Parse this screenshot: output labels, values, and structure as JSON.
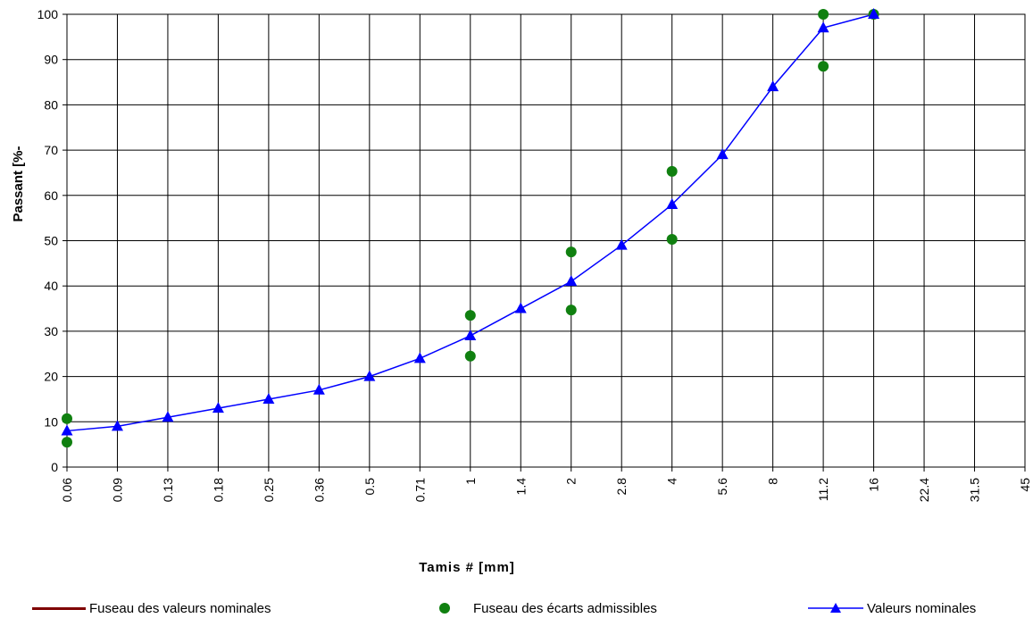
{
  "chart_data": {
    "type": "line",
    "xlabel": "Tamis # [mm]",
    "ylabel": "Passant [%-",
    "ylim": [
      0,
      100
    ],
    "yticks": [
      "0",
      "10",
      "20",
      "30",
      "40",
      "50",
      "60",
      "70",
      "80",
      "90",
      "100"
    ],
    "categories": [
      "0.06",
      "0.09",
      "0.13",
      "0.18",
      "0.25",
      "0.36",
      "0.5",
      "0.71",
      "1",
      "1.4",
      "2",
      "2.8",
      "4",
      "5.6",
      "8",
      "11.2",
      "16",
      "22.4",
      "31.5",
      "45"
    ],
    "grid": true,
    "legend_position": "bottom",
    "series": [
      {
        "name": "Fuseau des valeurs nominales",
        "color": "#7f0000",
        "marker": "none",
        "x": [],
        "values": []
      },
      {
        "name": "Fuseau des écarts admissibles",
        "color": "#108010",
        "marker": "circle",
        "x": [
          "0.06",
          "0.06",
          "1",
          "1",
          "2",
          "2",
          "4",
          "4",
          "11.2",
          "11.2",
          "16"
        ],
        "values": [
          10.7,
          5.5,
          33.5,
          24.5,
          47.5,
          34.7,
          65.3,
          50.3,
          100,
          88.5,
          100
        ]
      },
      {
        "name": "Valeurs nominales",
        "color": "#0000ff",
        "marker": "triangle",
        "x": [
          "0.06",
          "0.09",
          "0.13",
          "0.18",
          "0.25",
          "0.36",
          "0.5",
          "0.71",
          "1",
          "1.4",
          "2",
          "2.8",
          "4",
          "5.6",
          "8",
          "11.2",
          "16"
        ],
        "values": [
          8,
          9,
          11,
          13,
          15,
          17,
          20,
          24,
          29,
          35,
          41,
          49,
          58,
          69,
          84,
          97,
          100
        ]
      }
    ]
  }
}
